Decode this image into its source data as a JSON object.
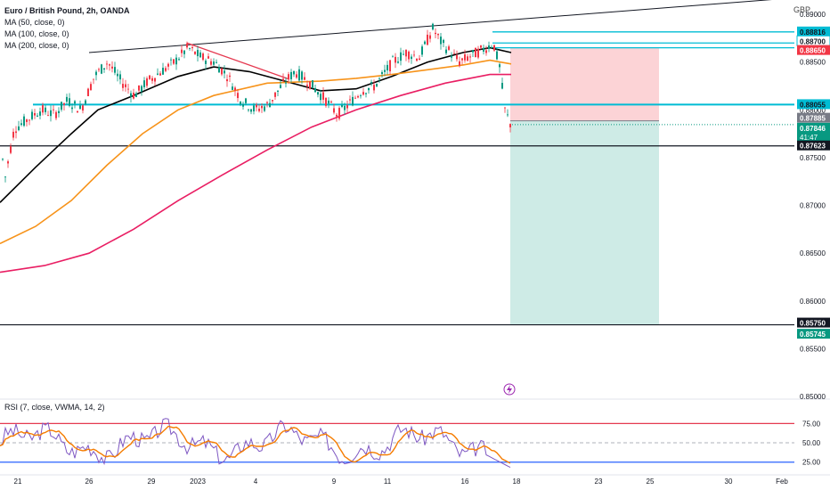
{
  "header": {
    "title": "Euro / British Pound, 2h, OANDA",
    "currency": "GBP",
    "ma_labels": [
      "MA (50, close, 0)",
      "MA (100, close, 0)",
      "MA (200, close, 0)"
    ]
  },
  "rsi": {
    "label": "RSI (7, close, VWMA, 14, 2)",
    "levels": [
      75,
      50,
      25
    ],
    "level_labels": [
      "75.00",
      "50.00",
      "25.00"
    ],
    "upper_color": "#e53950",
    "lower_color": "#2962ff"
  },
  "chart_data": {
    "type": "candlestick",
    "symbol": "EURGBP",
    "interval": "2h",
    "y_range": [
      0.85,
      0.8915
    ],
    "y_ticks": [
      "0.89000",
      "0.88500",
      "0.88000",
      "0.87500",
      "0.87000",
      "0.86500",
      "0.86000",
      "0.85500",
      "0.85000"
    ],
    "x_ticks": [
      "21",
      "26",
      "29",
      "2023",
      "4",
      "9",
      "11",
      "16",
      "18",
      "23",
      "25",
      "30",
      "Feb"
    ],
    "price_approx": [
      [
        0,
        0.876
      ],
      [
        5,
        0.873
      ],
      [
        15,
        0.878
      ],
      [
        30,
        0.879
      ],
      [
        45,
        0.88
      ],
      [
        60,
        0.8795
      ],
      [
        75,
        0.881
      ],
      [
        90,
        0.88
      ],
      [
        105,
        0.8835
      ],
      [
        120,
        0.885
      ],
      [
        135,
        0.883
      ],
      [
        150,
        0.8815
      ],
      [
        165,
        0.883
      ],
      [
        180,
        0.884
      ],
      [
        195,
        0.885
      ],
      [
        210,
        0.8865
      ],
      [
        225,
        0.8855
      ],
      [
        240,
        0.885
      ],
      [
        255,
        0.8835
      ],
      [
        270,
        0.881
      ],
      [
        285,
        0.88
      ],
      [
        300,
        0.8805
      ],
      [
        315,
        0.8825
      ],
      [
        330,
        0.884
      ],
      [
        345,
        0.883
      ],
      [
        355,
        0.882
      ],
      [
        365,
        0.881
      ],
      [
        378,
        0.8795
      ],
      [
        390,
        0.8805
      ],
      [
        405,
        0.882
      ],
      [
        420,
        0.8825
      ],
      [
        440,
        0.885
      ],
      [
        455,
        0.886
      ],
      [
        470,
        0.8855
      ],
      [
        485,
        0.8885
      ],
      [
        495,
        0.887
      ],
      [
        505,
        0.886
      ],
      [
        515,
        0.885
      ],
      [
        525,
        0.8855
      ],
      [
        535,
        0.886
      ],
      [
        545,
        0.8865
      ],
      [
        553,
        0.887
      ],
      [
        560,
        0.8845
      ],
      [
        566,
        0.88
      ],
      [
        572,
        0.8785
      ]
    ],
    "ma_series": [
      {
        "name": "MA (50, close, 0)",
        "color": "#000000",
        "points": [
          [
            0,
            0.8703
          ],
          [
            40,
            0.874
          ],
          [
            80,
            0.8775
          ],
          [
            110,
            0.88
          ],
          [
            150,
            0.8815
          ],
          [
            200,
            0.8835
          ],
          [
            240,
            0.8845
          ],
          [
            280,
            0.884
          ],
          [
            320,
            0.883
          ],
          [
            360,
            0.882
          ],
          [
            400,
            0.8822
          ],
          [
            440,
            0.8835
          ],
          [
            480,
            0.885
          ],
          [
            520,
            0.886
          ],
          [
            550,
            0.8865
          ],
          [
            574,
            0.886
          ]
        ]
      },
      {
        "name": "MA (100, close, 0)",
        "color": "#f7931a",
        "points": [
          [
            0,
            0.866
          ],
          [
            40,
            0.8678
          ],
          [
            80,
            0.8705
          ],
          [
            120,
            0.8742
          ],
          [
            160,
            0.8775
          ],
          [
            200,
            0.88
          ],
          [
            240,
            0.8815
          ],
          [
            300,
            0.8828
          ],
          [
            360,
            0.883
          ],
          [
            400,
            0.8833
          ],
          [
            440,
            0.8837
          ],
          [
            480,
            0.8842
          ],
          [
            520,
            0.8847
          ],
          [
            550,
            0.8852
          ],
          [
            574,
            0.8848
          ]
        ]
      },
      {
        "name": "MA (200, close, 0)",
        "color": "#e91e63",
        "points": [
          [
            0,
            0.863
          ],
          [
            50,
            0.8637
          ],
          [
            100,
            0.865
          ],
          [
            150,
            0.8675
          ],
          [
            200,
            0.8705
          ],
          [
            250,
            0.8732
          ],
          [
            300,
            0.8758
          ],
          [
            350,
            0.8782
          ],
          [
            400,
            0.88
          ],
          [
            450,
            0.8815
          ],
          [
            500,
            0.8828
          ],
          [
            550,
            0.8837
          ],
          [
            574,
            0.8837
          ]
        ]
      }
    ],
    "horizontal_levels": [
      {
        "value": 0.88816,
        "label": "0.88816",
        "color": "#00bcd4"
      },
      {
        "value": 0.887,
        "label": "0.88700",
        "color": "#00bcd4"
      },
      {
        "value": 0.8865,
        "label": "0.88650",
        "color": "#f23645"
      },
      {
        "value": 0.88055,
        "label": "0.88055",
        "color": "#00bcd4"
      },
      {
        "value": 0.87885,
        "label": "0.87885",
        "color": "#787b86"
      },
      {
        "value": 0.87846,
        "label": "0.87846",
        "color": "#00897b"
      },
      {
        "value": 0.87623,
        "label": "0.87623",
        "color": "#131722"
      },
      {
        "value": 0.8575,
        "label": "0.85750",
        "color": "#131722"
      },
      {
        "value": 0.85745,
        "label": "0.85745",
        "color": "#089981"
      }
    ],
    "countdown": "41:47",
    "position": {
      "type": "short",
      "entry": 0.87885,
      "stop": 0.8865,
      "target": 0.8575
    }
  }
}
